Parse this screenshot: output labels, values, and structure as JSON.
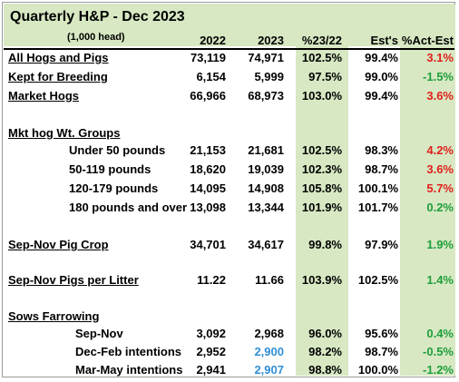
{
  "title": "Quarterly H&P - Dec 2023",
  "subtitle": "(1,000 head)",
  "headers": [
    "2022",
    "2023",
    "%23/22",
    "Est's",
    "%Act-Est"
  ],
  "colors": {
    "band": "#d7e8c3",
    "negative": "#e0201c",
    "positive": "#1f9e3a",
    "estimate": "#2f8fd6"
  },
  "rows": [
    {
      "label": "All Hogs and Pigs",
      "v2022": "73,119",
      "v2023": "74,971",
      "pct": "102.5%",
      "est": "99.4%",
      "act": "3.1%",
      "act_color": "red"
    },
    {
      "label": "Kept for Breeding",
      "v2022": "6,154",
      "v2023": "5,999",
      "pct": "97.5%",
      "est": "99.0%",
      "act": "-1.5%",
      "act_color": "green"
    },
    {
      "label": "Market Hogs",
      "v2022": "66,966",
      "v2023": "68,973",
      "pct": "103.0%",
      "est": "99.4%",
      "act": "3.6%",
      "act_color": "red"
    },
    {
      "label": "Mkt hog Wt. Groups"
    },
    {
      "label": "Under 50 pounds",
      "v2022": "21,153",
      "v2023": "21,681",
      "pct": "102.5%",
      "est": "98.3%",
      "act": "4.2%",
      "act_color": "red"
    },
    {
      "label": "50-119 pounds",
      "v2022": "18,620",
      "v2023": "19,039",
      "pct": "102.3%",
      "est": "98.7%",
      "act": "3.6%",
      "act_color": "red"
    },
    {
      "label": "120-179 pounds",
      "v2022": "14,095",
      "v2023": "14,908",
      "pct": "105.8%",
      "est": "100.1%",
      "act": "5.7%",
      "act_color": "red"
    },
    {
      "label": "180 pounds and over",
      "v2022": "13,098",
      "v2023": "13,344",
      "pct": "101.9%",
      "est": "101.7%",
      "act": "0.2%",
      "act_color": "green"
    },
    {
      "label": "Sep-Nov Pig Crop",
      "v2022": "34,701",
      "v2023": "34,617",
      "pct": "99.8%",
      "est": "97.9%",
      "act": "1.9%",
      "act_color": "green"
    },
    {
      "label": "Sep-Nov Pigs per Litter",
      "v2022": "11.22",
      "v2023": "11.66",
      "pct": "103.9%",
      "est": "102.5%",
      "act": "1.4%",
      "act_color": "green"
    },
    {
      "label": "Sows Farrowing"
    },
    {
      "label": "Sep-Nov",
      "v2022": "3,092",
      "v2023": "2,968",
      "pct": "96.0%",
      "est": "95.6%",
      "act": "0.4%",
      "act_color": "green"
    },
    {
      "label": "Dec-Feb intentions",
      "v2022": "2,952",
      "v2023": "2,900",
      "v2023_color": "blue",
      "pct": "98.2%",
      "est": "98.7%",
      "act": "-0.5%",
      "act_color": "green"
    },
    {
      "label": "Mar-May intentions",
      "v2022": "2,941",
      "v2023": "2,907",
      "v2023_color": "blue",
      "pct": "98.8%",
      "est": "100.0%",
      "act": "-1.2%",
      "act_color": "green"
    }
  ]
}
